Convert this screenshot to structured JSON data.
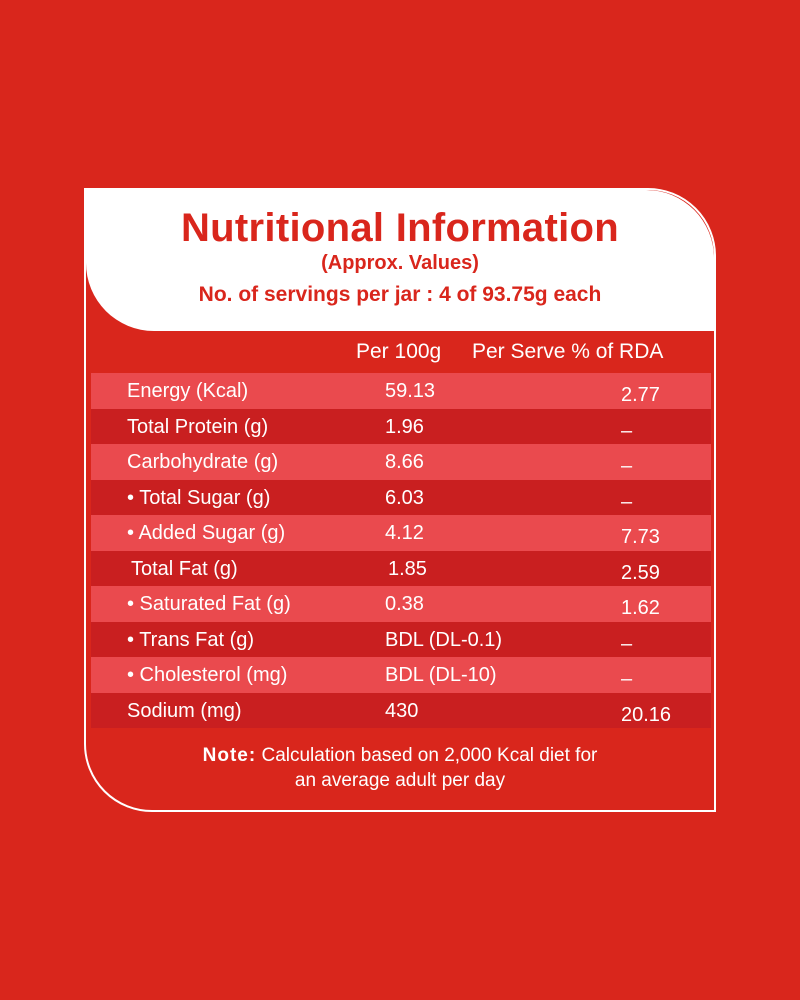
{
  "header": {
    "title": "Nutritional Information",
    "subtitle": "(Approx. Values)",
    "servings": "No. of servings per jar : 4 of 93.75g each"
  },
  "columns": {
    "per100": "Per 100g",
    "per_serve": "Per Serve % of RDA"
  },
  "rows": [
    {
      "name": "Energy (Kcal)",
      "per100": "59.13",
      "rda": "2.77"
    },
    {
      "name": "Total Protein (g)",
      "per100": "1.96",
      "rda": "–"
    },
    {
      "name": "Carbohydrate (g)",
      "per100": "8.66",
      "rda": "–"
    },
    {
      "name": "• Total Sugar (g)",
      "per100": "6.03",
      "rda": "–"
    },
    {
      "name": "• Added Sugar (g)",
      "per100": "4.12",
      "rda": "7.73"
    },
    {
      "name": "Total Fat (g)",
      "per100": "1.85",
      "rda": "2.59"
    },
    {
      "name": "• Saturated Fat (g)",
      "per100": "0.38",
      "rda": "1.62"
    },
    {
      "name": "• Trans Fat (g)",
      "per100": "BDL (DL-0.1)",
      "rda": "–"
    },
    {
      "name": "• Cholesterol (mg)",
      "per100": "BDL (DL-10)",
      "rda": "–"
    },
    {
      "name": "Sodium (mg)",
      "per100": "430",
      "rda": "20.16"
    }
  ],
  "note": {
    "label": "Note:",
    "text": "Calculation based on 2,000 Kcal diet for",
    "text2": "an average adult per day"
  },
  "colors": {
    "background": "#d9261c",
    "row_light": "#ea4a4e",
    "row_dark": "#c91f20",
    "white": "#ffffff"
  }
}
